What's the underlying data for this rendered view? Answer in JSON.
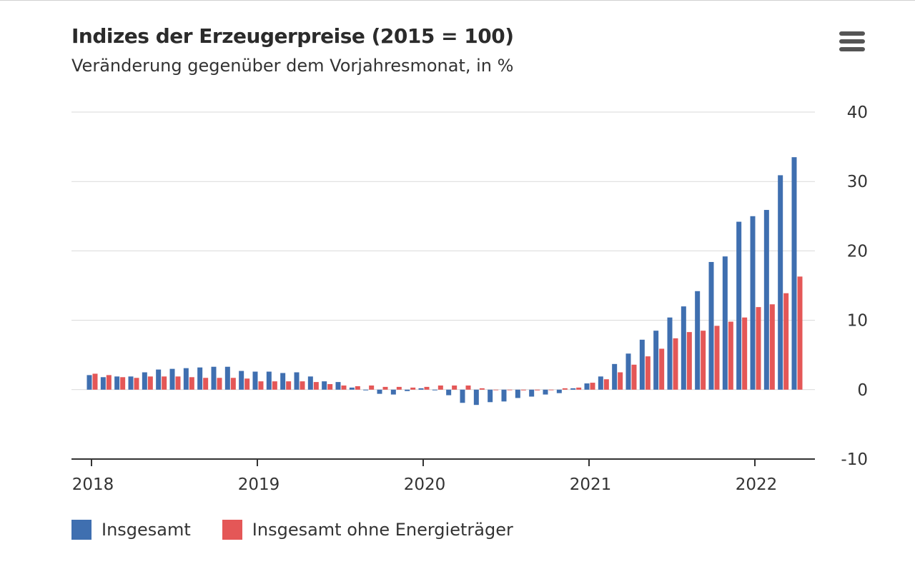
{
  "header": {
    "title": "Indizes der Erzeugerpreise (2015 = 100)",
    "subtitle": "Veränderung gegenüber dem Vorjahresmonat, in %",
    "menu_icon": "hamburger-menu-icon"
  },
  "colors": {
    "series_1": "#3f6fb0",
    "series_2": "#e45757",
    "grid": "#d9d9d9",
    "axis": "#333333"
  },
  "chart_data": {
    "type": "bar",
    "title": "Indizes der Erzeugerpreise (2015 = 100)",
    "subtitle": "Veränderung gegenüber dem Vorjahresmonat, in %",
    "xlabel": "",
    "ylabel": "",
    "ylim": [
      -10,
      40
    ],
    "y_ticks": [
      40,
      30,
      20,
      10,
      0,
      -10
    ],
    "x_tick_labels": [
      "2018",
      "2019",
      "2020",
      "2021",
      "2022"
    ],
    "x_ticks_at_month_index": [
      0,
      12,
      24,
      36,
      48
    ],
    "y_axis_position": "right",
    "grid": true,
    "legend_position": "bottom-left",
    "categories": [
      "2018-01",
      "2018-02",
      "2018-03",
      "2018-04",
      "2018-05",
      "2018-06",
      "2018-07",
      "2018-08",
      "2018-09",
      "2018-10",
      "2018-11",
      "2018-12",
      "2019-01",
      "2019-02",
      "2019-03",
      "2019-04",
      "2019-05",
      "2019-06",
      "2019-07",
      "2019-08",
      "2019-09",
      "2019-10",
      "2019-11",
      "2019-12",
      "2020-01",
      "2020-02",
      "2020-03",
      "2020-04",
      "2020-05",
      "2020-06",
      "2020-07",
      "2020-08",
      "2020-09",
      "2020-10",
      "2020-11",
      "2020-12",
      "2021-01",
      "2021-02",
      "2021-03",
      "2021-04",
      "2021-05",
      "2021-06",
      "2021-07",
      "2021-08",
      "2021-09",
      "2021-10",
      "2021-11",
      "2021-12",
      "2022-01",
      "2022-02",
      "2022-03",
      "2022-04"
    ],
    "series": [
      {
        "name": "Insgesamt",
        "values": [
          2.1,
          1.8,
          1.9,
          1.9,
          2.5,
          2.9,
          3.0,
          3.1,
          3.2,
          3.3,
          3.3,
          2.7,
          2.6,
          2.6,
          2.4,
          2.5,
          1.9,
          1.2,
          1.1,
          0.3,
          -0.1,
          -0.6,
          -0.7,
          -0.2,
          0.2,
          -0.1,
          -0.8,
          -1.9,
          -2.2,
          -1.8,
          -1.7,
          -1.2,
          -1.0,
          -0.7,
          -0.5,
          0.2,
          0.9,
          1.9,
          3.7,
          5.2,
          7.2,
          8.5,
          10.4,
          12.0,
          14.2,
          18.4,
          19.2,
          24.2,
          25.0,
          25.9,
          30.9,
          33.5
        ]
      },
      {
        "name": "Insgesamt ohne Energieträger",
        "values": [
          2.3,
          2.1,
          1.8,
          1.7,
          1.9,
          1.9,
          1.9,
          1.8,
          1.7,
          1.7,
          1.7,
          1.6,
          1.2,
          1.2,
          1.2,
          1.2,
          1.1,
          0.8,
          0.6,
          0.5,
          0.6,
          0.4,
          0.4,
          0.3,
          0.4,
          0.6,
          0.6,
          0.6,
          0.2,
          0.0,
          0.0,
          -0.1,
          -0.1,
          0.0,
          0.2,
          0.3,
          1.0,
          1.5,
          2.5,
          3.6,
          4.8,
          5.9,
          7.4,
          8.3,
          8.5,
          9.2,
          9.8,
          10.4,
          11.9,
          12.3,
          13.9,
          16.3
        ]
      }
    ]
  }
}
